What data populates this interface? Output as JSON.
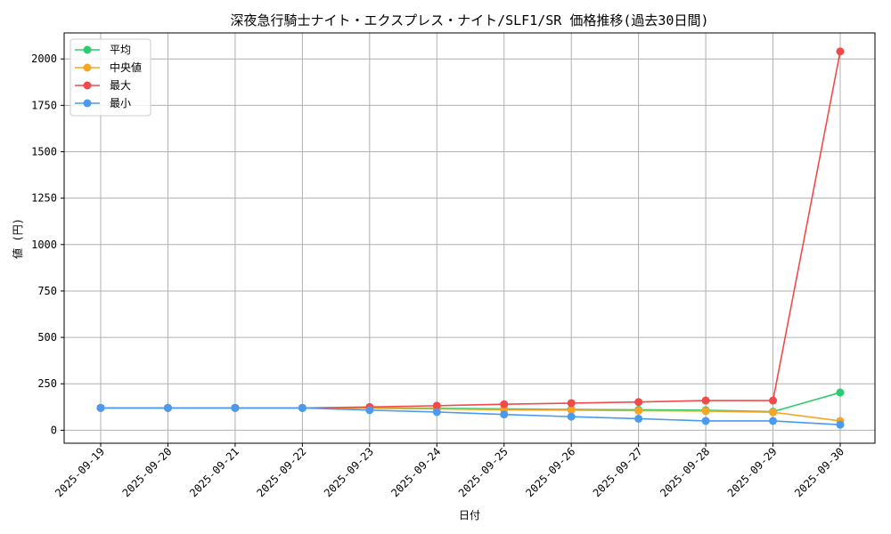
{
  "chart_data": {
    "type": "line",
    "title": "深夜急行騎士ナイト・エクスプレス・ナイト/SLF1/SR 価格推移(過去30日間)",
    "xlabel": "日付",
    "ylabel": "値 (円)",
    "categories": [
      "2025-09-19",
      "2025-09-20",
      "2025-09-21",
      "2025-09-22",
      "2025-09-23",
      "2025-09-24",
      "2025-09-25",
      "2025-09-26",
      "2025-09-27",
      "2025-09-28",
      "2025-09-29",
      "2025-09-30"
    ],
    "yticks": [
      "0",
      "250",
      "500",
      "750",
      "1000",
      "1250",
      "1500",
      "1750",
      "2000"
    ],
    "ytick_values": [
      0,
      250,
      500,
      750,
      1000,
      1250,
      1500,
      1750,
      2000
    ],
    "ylim": [
      -70,
      2140
    ],
    "grid": true,
    "legend_position": "top-left",
    "series": [
      {
        "name": "平均",
        "color": "#2ecc71",
        "values": [
          120,
          120,
          120,
          120,
          120,
          118,
          115,
          112,
          110,
          108,
          100,
          203
        ]
      },
      {
        "name": "中央値",
        "color": "#f5a623",
        "values": [
          120,
          120,
          120,
          120,
          118,
          115,
          110,
          108,
          105,
          103,
          97,
          50
        ]
      },
      {
        "name": "最大",
        "color": "#f04a4a",
        "values": [
          120,
          120,
          120,
          120,
          125,
          132,
          140,
          146,
          152,
          160,
          160,
          2040
        ]
      },
      {
        "name": "最小",
        "color": "#4a9af0",
        "values": [
          120,
          120,
          120,
          120,
          108,
          98,
          85,
          73,
          62,
          50,
          50,
          30
        ]
      }
    ]
  }
}
